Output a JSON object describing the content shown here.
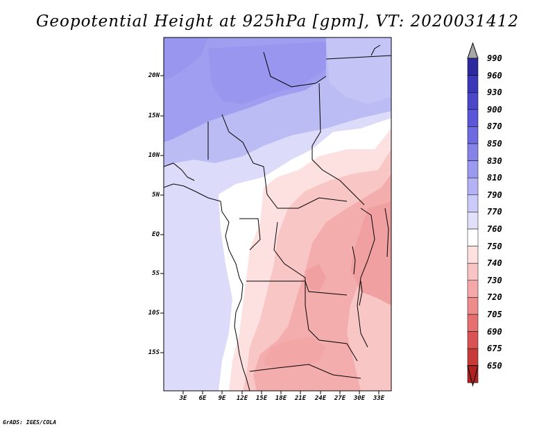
{
  "title": "Geopotential Height at 925hPa [gpm], VT: 2020031412",
  "footer": "GrADS: IGES/COLA",
  "lat_labels": [
    "20N",
    "15N",
    "10N",
    "5N",
    "EQ",
    "5S",
    "10S",
    "15S"
  ],
  "lon_labels": [
    "3E",
    "6E",
    "9E",
    "12E",
    "15E",
    "18E",
    "21E",
    "24E",
    "27E",
    "30E",
    "33E"
  ],
  "colorbar": {
    "levels": [
      "990",
      "960",
      "930",
      "900",
      "870",
      "850",
      "830",
      "810",
      "790",
      "770",
      "760",
      "750",
      "740",
      "730",
      "720",
      "705",
      "690",
      "675",
      "650"
    ],
    "colors": [
      "#2d2aa0",
      "#3a38b8",
      "#4a47c8",
      "#5a57d8",
      "#6e6be0",
      "#8583e8",
      "#9c9af0",
      "#b4b2f4",
      "#cbcaf8",
      "#e0e0fb",
      "#ffffff",
      "#fde0e0",
      "#f9c4c4",
      "#f4a8a8",
      "#ee8c8c",
      "#e67070",
      "#d85454",
      "#c83a3a",
      "#b02222"
    ]
  }
}
